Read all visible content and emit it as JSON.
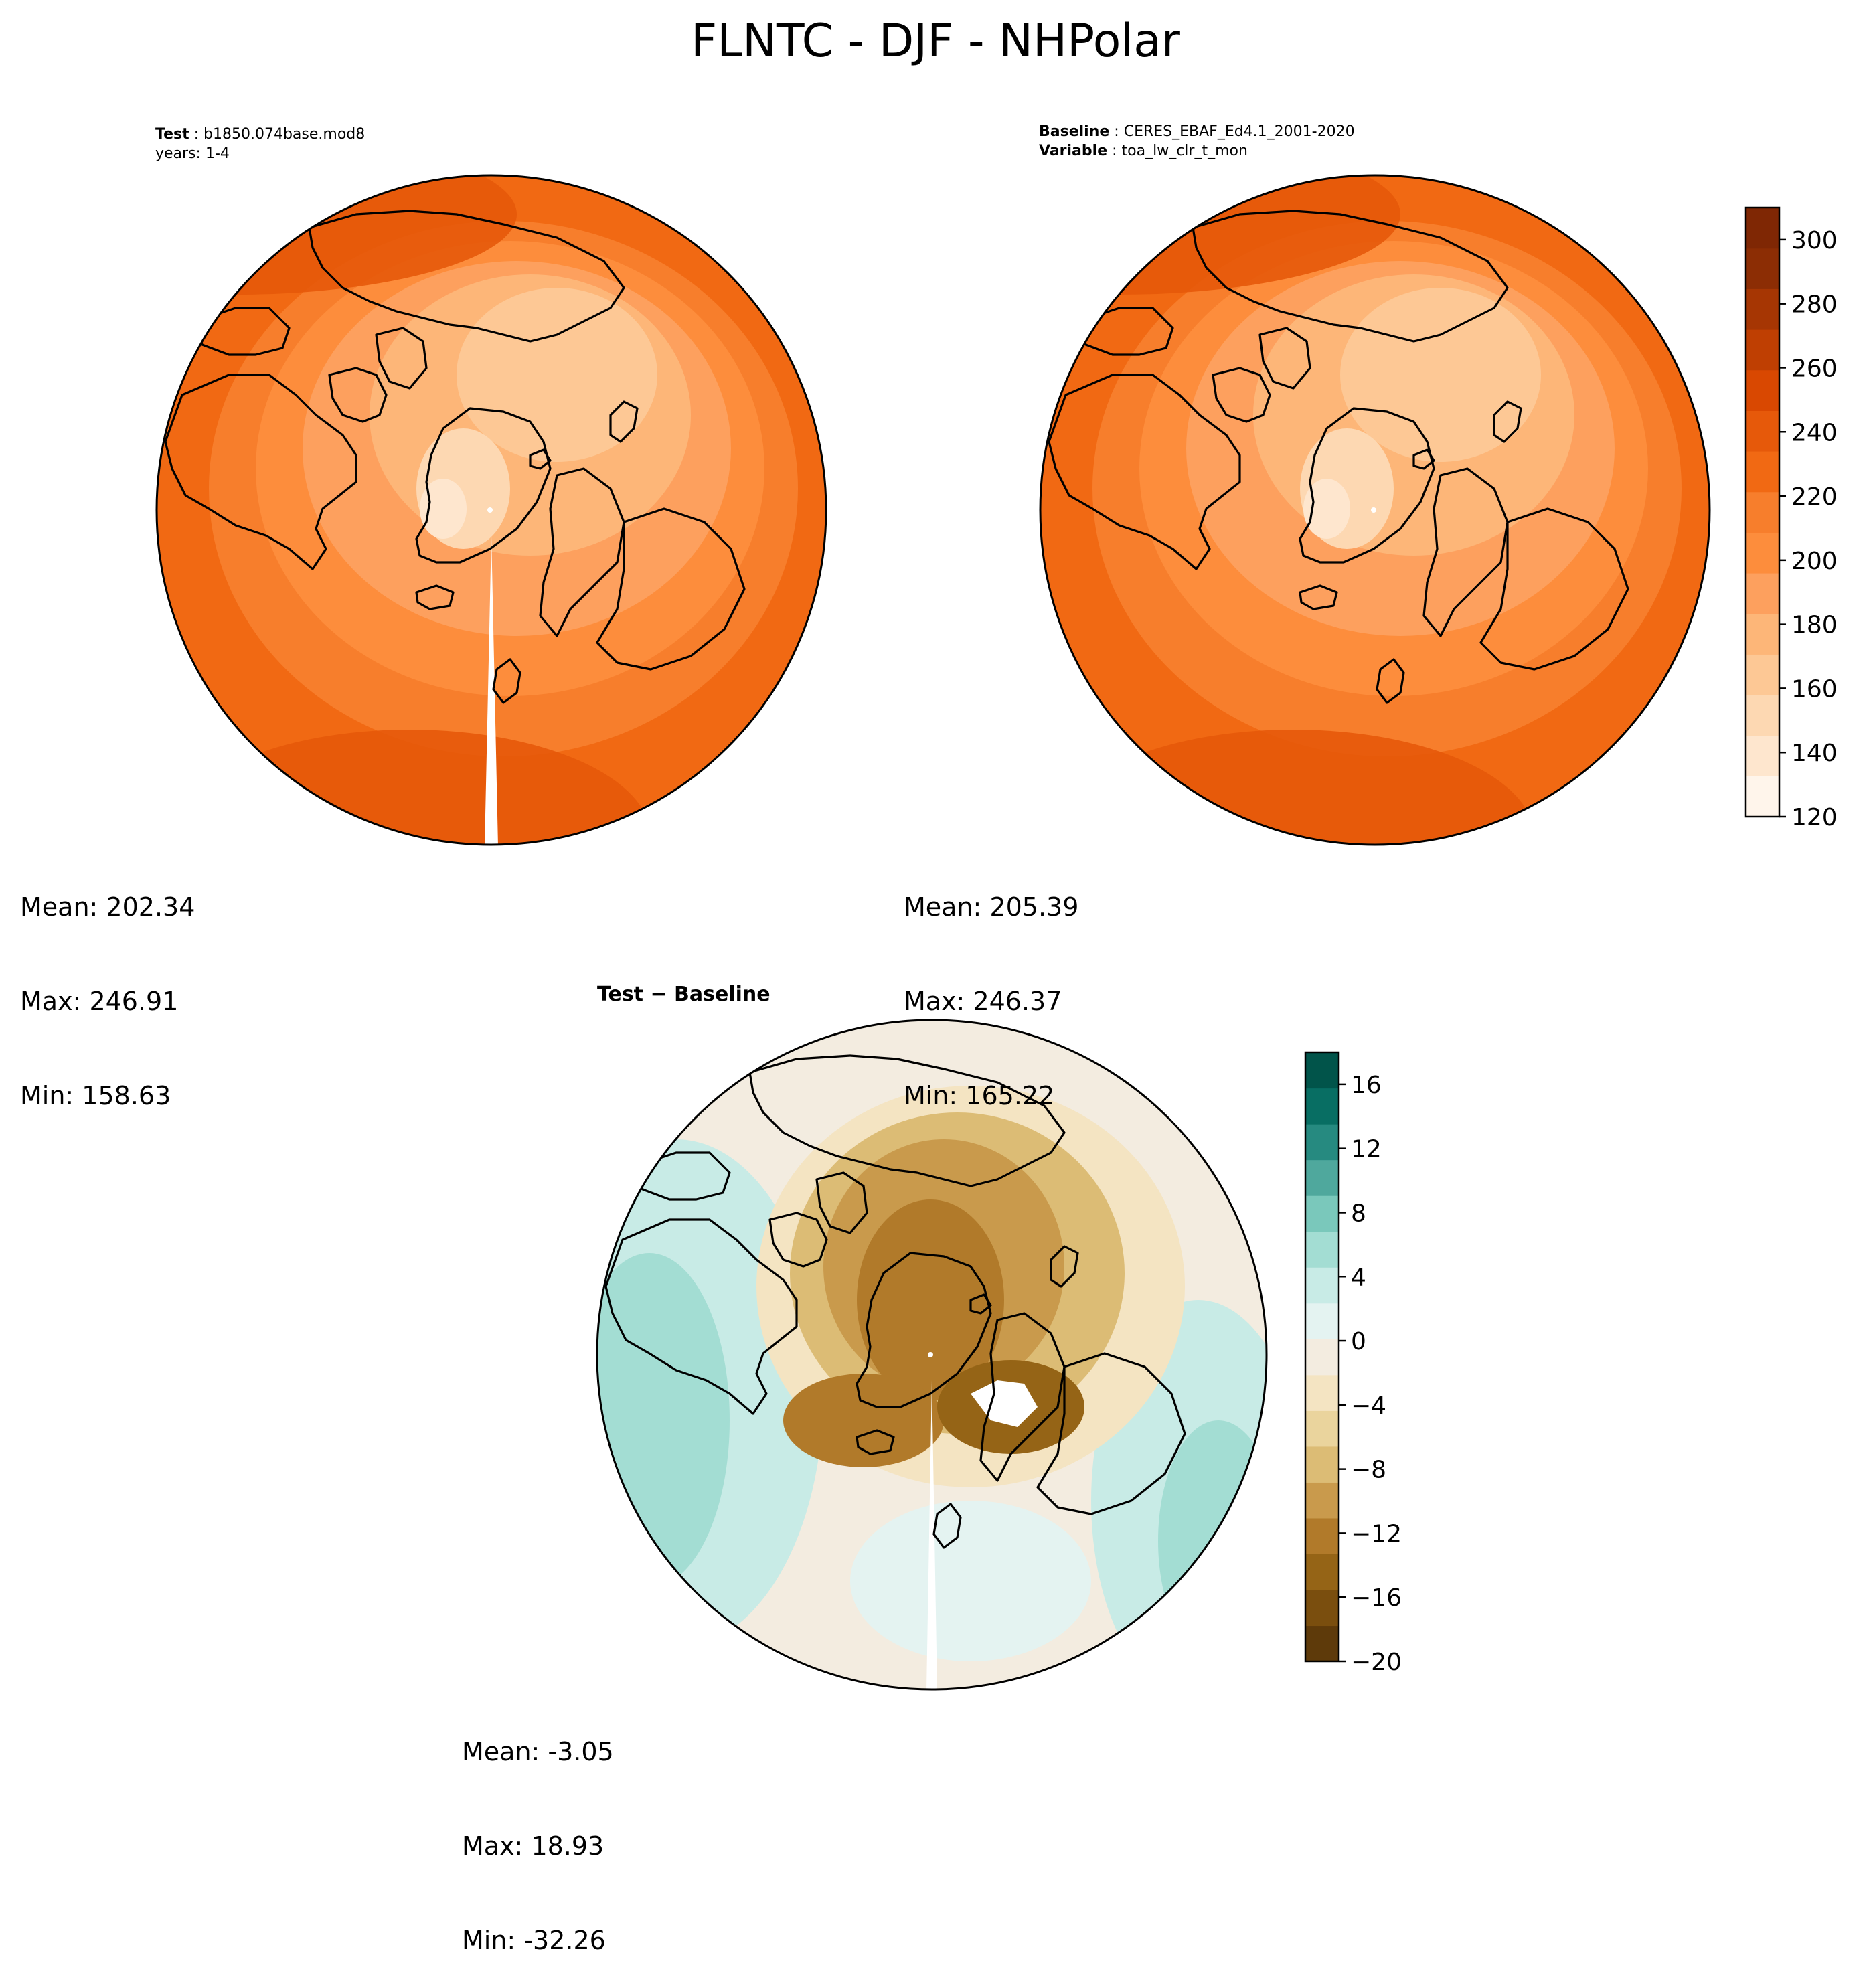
{
  "figure": {
    "title": "FLNTC - DJF - NHPolar"
  },
  "panels": {
    "test": {
      "key": "Test",
      "name": "b1850.074base.mod8",
      "years": "years: 1-4",
      "mean": "Mean: 202.34",
      "max": "Max: 246.91",
      "min": "Min: 158.63"
    },
    "baseline": {
      "key": "Baseline",
      "name": "CERES_EBAF_Ed4.1_2001-2020",
      "var_key": "Variable",
      "var_name": "toa_lw_clr_t_mon",
      "mean": "Mean: 205.39",
      "max": "Max: 246.37",
      "min": "Min: 165.22"
    },
    "diff": {
      "title": "Test − Baseline",
      "mean": "Mean: -3.05",
      "max": "Max: 18.93",
      "min": "Min: -32.26"
    }
  },
  "colors": {
    "oranges": [
      "#fff5eb",
      "#fee6ce",
      "#fdd8b2",
      "#fdc895",
      "#fdb678",
      "#fda05e",
      "#fd8d3c",
      "#f77e2c",
      "#f16913",
      "#e6590a",
      "#d94801",
      "#bf3f02",
      "#a63603",
      "#8c2d04",
      "#7f2704"
    ],
    "brbg": [
      "#5e3a0a",
      "#7a4e0e",
      "#956416",
      "#b17a2a",
      "#c99a4c",
      "#dcbc75",
      "#ead49d",
      "#f4e4c2",
      "#f3ece0",
      "#e4f3f1",
      "#c8ebe6",
      "#a3ddd3",
      "#7ac8bb",
      "#4fa89d",
      "#268a80",
      "#086e63",
      "#01544a"
    ]
  },
  "chart_data": [
    {
      "type": "heatmap",
      "name": "test",
      "projection": "north polar stereographic",
      "colorbar_ticks": [
        120,
        140,
        160,
        180,
        200,
        220,
        240,
        260,
        280,
        300
      ],
      "colorbar_range": [
        120,
        310
      ],
      "mean": 202.34,
      "max": 246.91,
      "min": 158.63
    },
    {
      "type": "heatmap",
      "name": "baseline",
      "projection": "north polar stereographic",
      "colorbar_ticks": [
        120,
        140,
        160,
        180,
        200,
        220,
        240,
        260,
        280,
        300
      ],
      "colorbar_range": [
        120,
        310
      ],
      "mean": 205.39,
      "max": 246.37,
      "min": 165.22
    },
    {
      "type": "heatmap",
      "name": "diff",
      "projection": "north polar stereographic",
      "colorbar_ticks": [
        -20,
        -16,
        -12,
        -8,
        -4,
        0,
        4,
        8,
        12,
        16
      ],
      "colorbar_range": [
        -20,
        18
      ],
      "mean": -3.05,
      "max": 18.93,
      "min": -32.26
    }
  ]
}
